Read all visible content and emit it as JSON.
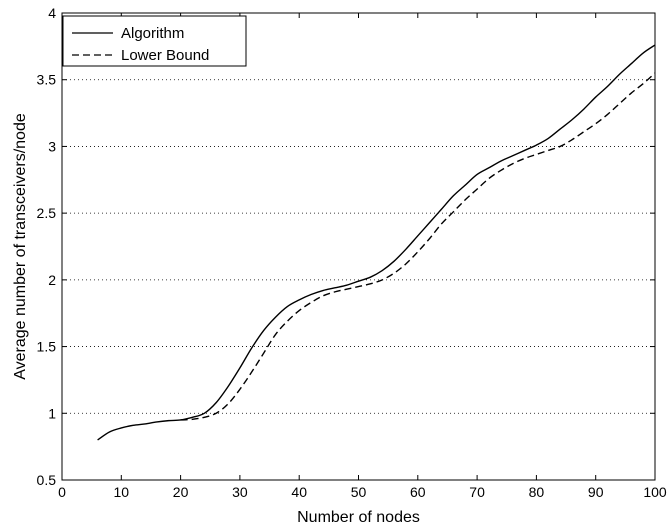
{
  "chart_data": {
    "type": "line",
    "xlabel": "Number of nodes",
    "ylabel": "Average number of transceivers/node",
    "xlim": [
      0,
      100
    ],
    "ylim": [
      0.5,
      4
    ],
    "x_ticks": [
      "0",
      "10",
      "20",
      "30",
      "40",
      "50",
      "60",
      "70",
      "80",
      "90",
      "100"
    ],
    "y_ticks": [
      "0.5",
      "1",
      "1.5",
      "2",
      "2.5",
      "3",
      "3.5",
      "4"
    ],
    "grid": "horizontal-dotted",
    "legend_position": "top-left",
    "series": [
      {
        "name": "Algorithm",
        "style": "solid",
        "x": [
          6,
          8,
          10,
          12,
          14,
          16,
          18,
          20,
          22,
          24,
          26,
          28,
          30,
          32,
          34,
          36,
          38,
          40,
          42,
          44,
          46,
          48,
          50,
          52,
          54,
          56,
          58,
          60,
          62,
          64,
          66,
          68,
          70,
          72,
          74,
          76,
          78,
          80,
          82,
          84,
          86,
          88,
          90,
          92,
          94,
          96,
          98,
          100
        ],
        "y": [
          0.8,
          0.86,
          0.89,
          0.91,
          0.92,
          0.935,
          0.945,
          0.95,
          0.97,
          1.0,
          1.08,
          1.2,
          1.34,
          1.49,
          1.62,
          1.72,
          1.8,
          1.85,
          1.89,
          1.92,
          1.94,
          1.96,
          1.99,
          2.02,
          2.07,
          2.14,
          2.23,
          2.33,
          2.43,
          2.53,
          2.63,
          2.71,
          2.79,
          2.84,
          2.89,
          2.93,
          2.97,
          3.01,
          3.06,
          3.13,
          3.2,
          3.28,
          3.37,
          3.45,
          3.54,
          3.62,
          3.7,
          3.76
        ]
      },
      {
        "name": "Lower Bound",
        "style": "dashed",
        "x": [
          20,
          22,
          24,
          26,
          28,
          30,
          32,
          34,
          36,
          38,
          40,
          42,
          44,
          46,
          48,
          50,
          52,
          54,
          56,
          58,
          60,
          62,
          64,
          66,
          68,
          70,
          72,
          74,
          76,
          78,
          80,
          82,
          84,
          86,
          88,
          90,
          92,
          94,
          96,
          98,
          100
        ],
        "y": [
          0.95,
          0.955,
          0.97,
          1.0,
          1.07,
          1.18,
          1.31,
          1.45,
          1.59,
          1.69,
          1.77,
          1.83,
          1.88,
          1.91,
          1.93,
          1.95,
          1.97,
          2.0,
          2.05,
          2.12,
          2.21,
          2.31,
          2.42,
          2.51,
          2.6,
          2.68,
          2.76,
          2.82,
          2.87,
          2.91,
          2.94,
          2.97,
          3.0,
          3.05,
          3.11,
          3.17,
          3.24,
          3.32,
          3.4,
          3.47,
          3.55
        ]
      }
    ]
  }
}
